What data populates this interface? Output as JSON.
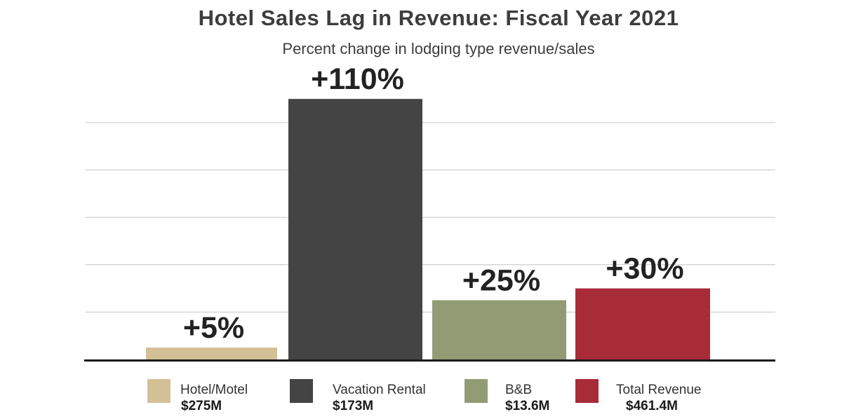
{
  "chart_data": {
    "type": "bar",
    "title": "Hotel Sales Lag in Revenue: Fiscal Year 2021",
    "subtitle": "Percent change in lodging type revenue/sales",
    "categories": [
      "Hotel/Motel",
      "Vacation Rental",
      "B&B",
      "Total Revenue"
    ],
    "values": [
      5,
      110,
      25,
      30
    ],
    "value_labels": [
      "+5%",
      "+110%",
      "+25%",
      "+30%"
    ],
    "amounts": [
      "$275M",
      "$173M",
      "$13.6M",
      "$461.4M"
    ],
    "colors": [
      "#d3c097",
      "#444444",
      "#929c74",
      "#a82c38"
    ],
    "ylim": [
      0,
      100
    ],
    "gridlines": [
      20,
      40,
      60,
      80,
      100
    ],
    "grid": true,
    "xlabel": "",
    "ylabel": "",
    "legend_position": "bottom"
  }
}
